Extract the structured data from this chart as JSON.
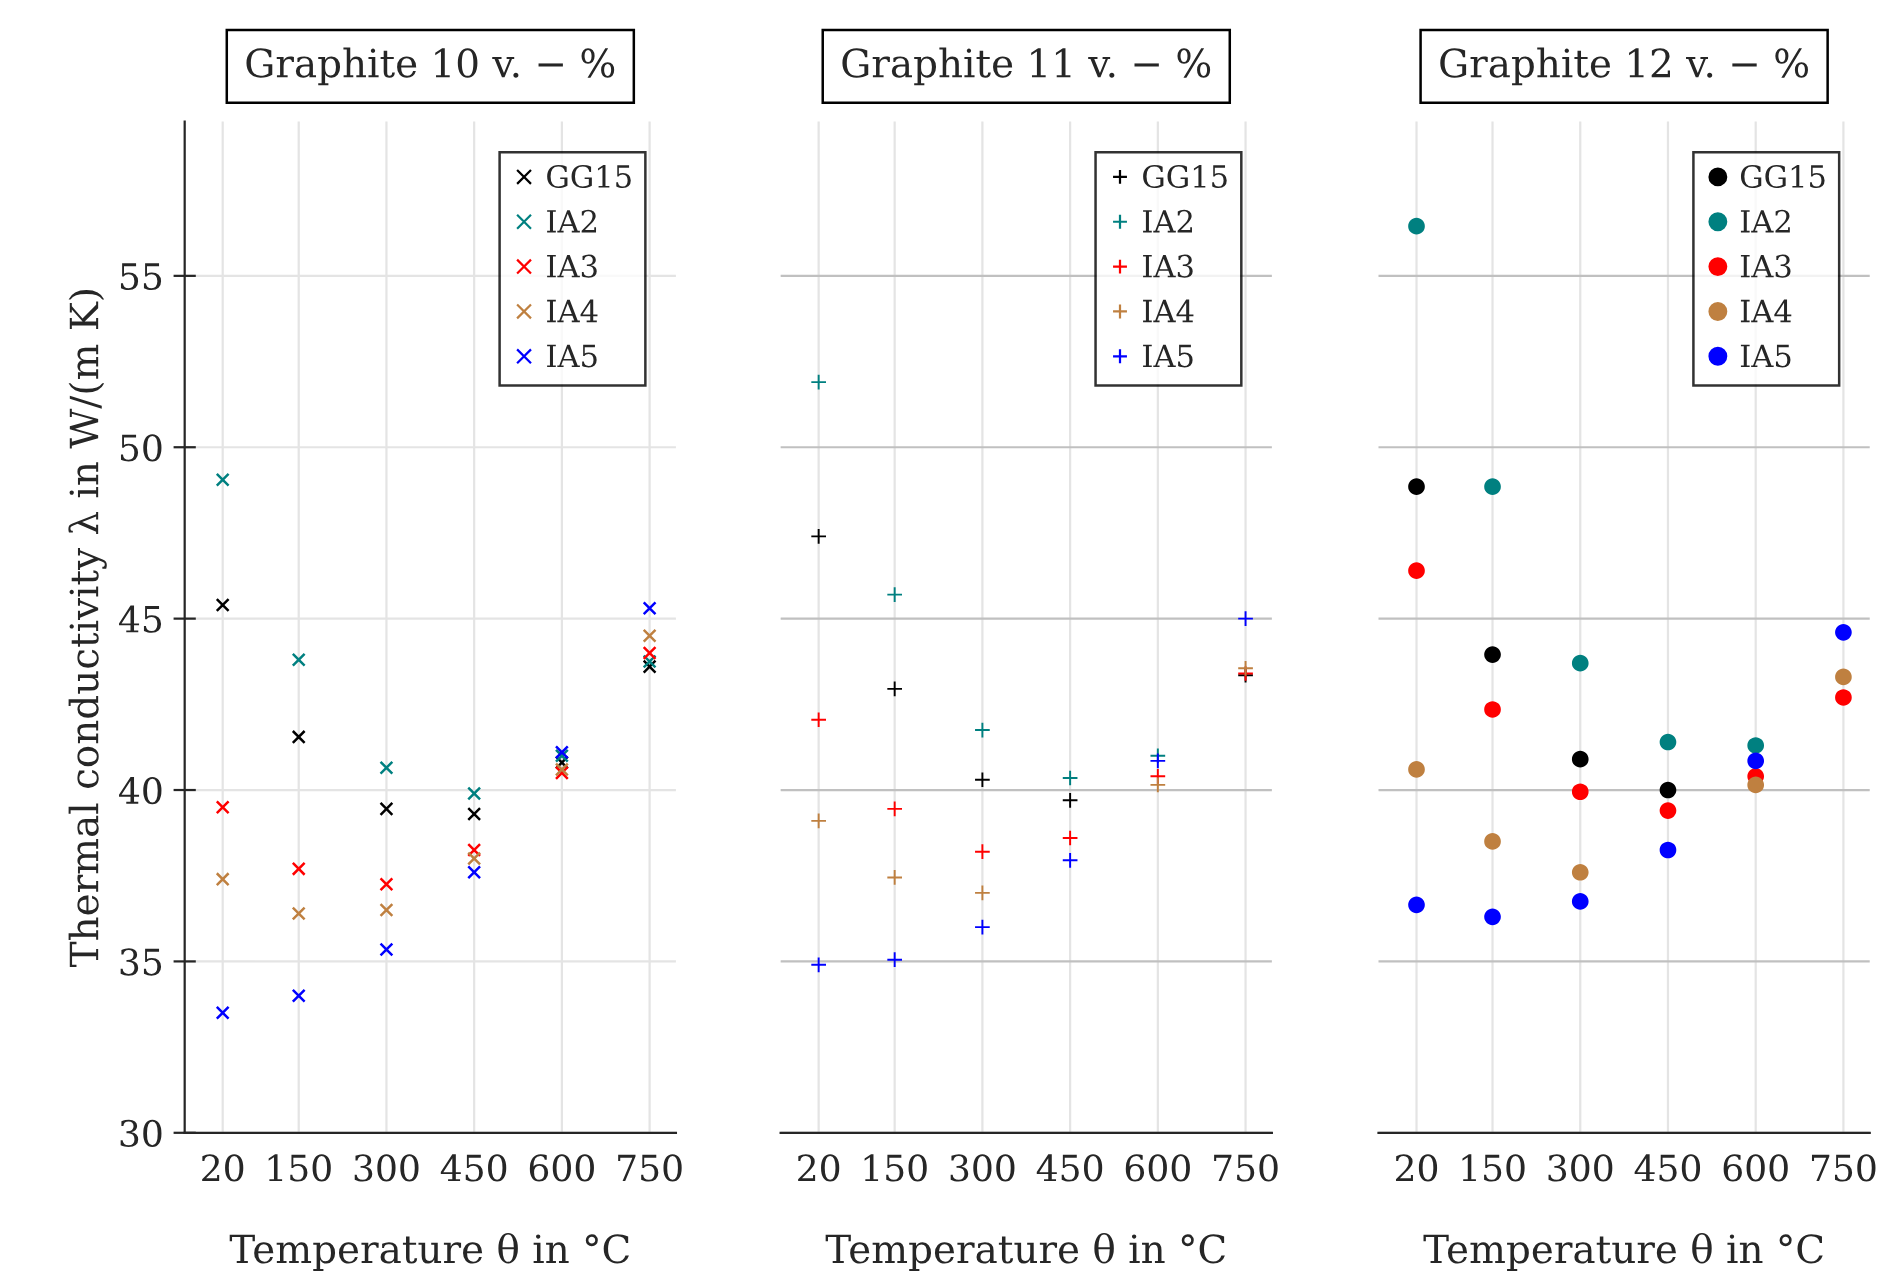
{
  "chart_data": [
    {
      "type": "scatter",
      "title": "Graphite 10 v. − %",
      "xlabel": "Temperature θ in °C",
      "ylabel": "Thermal conductivity λ in W/(m K)",
      "x": [
        20,
        150,
        300,
        450,
        600,
        750
      ],
      "xlim": [
        -45,
        795
      ],
      "xticks": [
        20,
        150,
        300,
        450,
        600,
        750
      ],
      "ylim": [
        30,
        59.5
      ],
      "yticks": [
        30,
        35,
        40,
        45,
        50,
        55
      ],
      "grid": true,
      "legend": "top right",
      "marker": "x",
      "series": [
        {
          "name": "GG15",
          "color": "#000000",
          "values": [
            45.4,
            41.55,
            39.45,
            39.3,
            40.8,
            43.6
          ]
        },
        {
          "name": "IA2",
          "color": "#008080",
          "values": [
            49.05,
            43.8,
            40.65,
            39.9,
            41.0,
            43.75
          ]
        },
        {
          "name": "IA3",
          "color": "#ff0000",
          "values": [
            39.5,
            37.7,
            37.25,
            38.25,
            40.5,
            44.0
          ]
        },
        {
          "name": "IA4",
          "color": "#bf8040",
          "values": [
            37.4,
            36.4,
            36.5,
            38.0,
            40.6,
            44.5
          ]
        },
        {
          "name": "IA5",
          "color": "#0000ff",
          "values": [
            33.5,
            34.0,
            35.35,
            37.6,
            41.1,
            45.3
          ]
        }
      ]
    },
    {
      "type": "scatter",
      "title": "Graphite 11 v. − %",
      "xlabel": "Temperature θ in °C",
      "x": [
        20,
        150,
        300,
        450,
        600,
        750
      ],
      "xlim": [
        -45,
        795
      ],
      "xticks": [
        20,
        150,
        300,
        450,
        600,
        750
      ],
      "ylim": [
        30,
        59.5
      ],
      "yticks": [
        30,
        35,
        40,
        45,
        50,
        55
      ],
      "tick_labels": "x",
      "grid": true,
      "legend": "top right",
      "marker": "cross",
      "series": [
        {
          "name": "GG15",
          "color": "#000000",
          "values": [
            47.4,
            42.95,
            40.3,
            39.7,
            null,
            43.35
          ]
        },
        {
          "name": "IA2",
          "color": "#008080",
          "values": [
            51.9,
            45.7,
            41.75,
            40.35,
            41.0,
            null
          ]
        },
        {
          "name": "IA3",
          "color": "#ff0000",
          "values": [
            42.05,
            39.45,
            38.2,
            38.6,
            40.4,
            43.4
          ]
        },
        {
          "name": "IA4",
          "color": "#bf8040",
          "values": [
            39.1,
            37.45,
            37.0,
            null,
            40.15,
            43.55
          ]
        },
        {
          "name": "IA5",
          "color": "#0000ff",
          "values": [
            34.9,
            35.05,
            36.0,
            37.95,
            40.85,
            45.0
          ]
        }
      ]
    },
    {
      "type": "scatter",
      "title": "Graphite 12 v. − %",
      "xlabel": "Temperature θ in °C",
      "x": [
        20,
        150,
        300,
        450,
        600,
        750
      ],
      "xlim": [
        -45,
        795
      ],
      "xticks": [
        20,
        150,
        300,
        450,
        600,
        750
      ],
      "ylim": [
        30,
        59.5
      ],
      "yticks": [
        30,
        35,
        40,
        45,
        50,
        55
      ],
      "tick_labels": "x",
      "grid": true,
      "legend": "top right",
      "marker": "circle",
      "series": [
        {
          "name": "GG15",
          "color": "#000000",
          "values": [
            48.85,
            43.95,
            40.9,
            40.0,
            null,
            null
          ]
        },
        {
          "name": "IA2",
          "color": "#008080",
          "values": [
            56.45,
            48.85,
            43.7,
            41.4,
            41.3,
            null
          ]
        },
        {
          "name": "IA3",
          "color": "#ff0000",
          "values": [
            46.4,
            42.35,
            39.95,
            39.4,
            40.4,
            42.7
          ]
        },
        {
          "name": "IA4",
          "color": "#bf8040",
          "values": [
            40.6,
            38.5,
            37.6,
            null,
            40.15,
            43.3
          ]
        },
        {
          "name": "IA5",
          "color": "#0000ff",
          "values": [
            36.65,
            36.3,
            36.75,
            38.25,
            40.85,
            44.6
          ]
        }
      ]
    }
  ]
}
